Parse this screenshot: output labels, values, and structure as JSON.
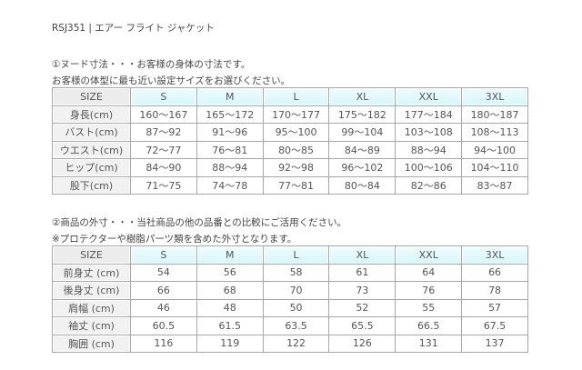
{
  "title": "RSJ351 | エアー フライト ジャケット",
  "section1": {
    "line1": "①ヌード寸法・・・お客様の身体の寸法です。",
    "line2": "お客様の体型に最も近い設定サイズをお選びください。",
    "header": [
      "SIZE",
      "S",
      "M",
      "L",
      "XL",
      "XXL",
      "3XL"
    ],
    "rows": [
      [
        "身長(cm)",
        "160～167",
        "165～172",
        "170～177",
        "175～182",
        "177～184",
        "180～187"
      ],
      [
        "バスト(cm)",
        "87～92",
        "91～96",
        "95～100",
        "99～104",
        "103～108",
        "108～113"
      ],
      [
        "ウエスト(cm)",
        "72～77",
        "76～81",
        "80～85",
        "84～89",
        "88～94",
        "94～100"
      ],
      [
        "ヒップ(cm)",
        "84～90",
        "88～94",
        "92～98",
        "96～102",
        "100～106",
        "104～110"
      ],
      [
        "股下(cm)",
        "71～75",
        "74～78",
        "77～81",
        "80～84",
        "82～86",
        "83～87"
      ]
    ]
  },
  "section2": {
    "line1": "②商品の外寸・・・当社商品の他の品番との比較にご活用ください。",
    "line2": "※プロテクターや樹脂パーツ類を含めた外寸となります。",
    "header": [
      "SIZE",
      "S",
      "M",
      "L",
      "XL",
      "XXL",
      "3XL"
    ],
    "rows": [
      [
        "前身丈 (cm)",
        "54",
        "56",
        "58",
        "61",
        "64",
        "66"
      ],
      [
        "後身丈 (cm)",
        "66",
        "68",
        "70",
        "73",
        "76",
        "78"
      ],
      [
        "肩幅 (cm)",
        "46",
        "48",
        "50",
        "52",
        "55",
        "57"
      ],
      [
        "袖丈 (cm)",
        "60.5",
        "61.5",
        "63.5",
        "65.5",
        "66.5",
        "67.5"
      ],
      [
        "胸囲 (cm)",
        "116",
        "119",
        "122",
        "126",
        "131",
        "137"
      ]
    ]
  }
}
